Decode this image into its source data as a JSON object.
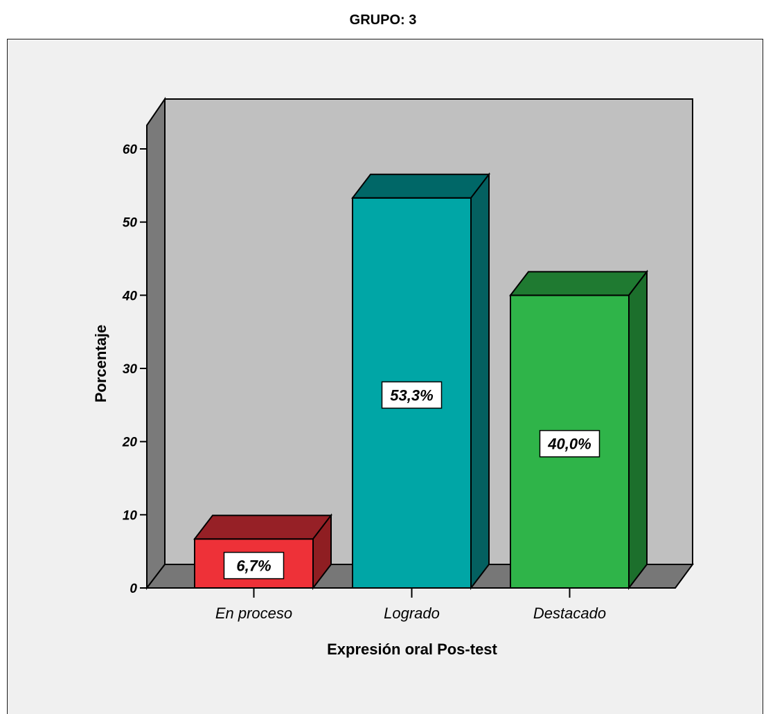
{
  "chart_data": {
    "type": "bar",
    "title": "GRUPO: 3",
    "xlabel": "Expresión oral Pos-test",
    "ylabel": "Porcentaje",
    "categories": [
      "En proceso",
      "Logrado",
      "Destacado"
    ],
    "values": [
      6.7,
      53.3,
      40.0
    ],
    "data_labels": [
      "6,7%",
      "53,3%",
      "40,0%"
    ],
    "yticks": [
      0,
      10,
      20,
      30,
      40,
      50,
      60
    ],
    "ylim": [
      0,
      60
    ],
    "three_d": true,
    "colors": {
      "front": [
        "#ee3138",
        "#00a6a6",
        "#2fb449"
      ],
      "top": [
        "#962026",
        "#006767",
        "#1f7a31"
      ],
      "side": [
        "#8f1e22",
        "#046060",
        "#1c6f2c"
      ],
      "back_wall": "#c0c0c0",
      "side_wall": "#7a7a7a",
      "floor": "#777777",
      "background": "#f0f0f0"
    }
  }
}
